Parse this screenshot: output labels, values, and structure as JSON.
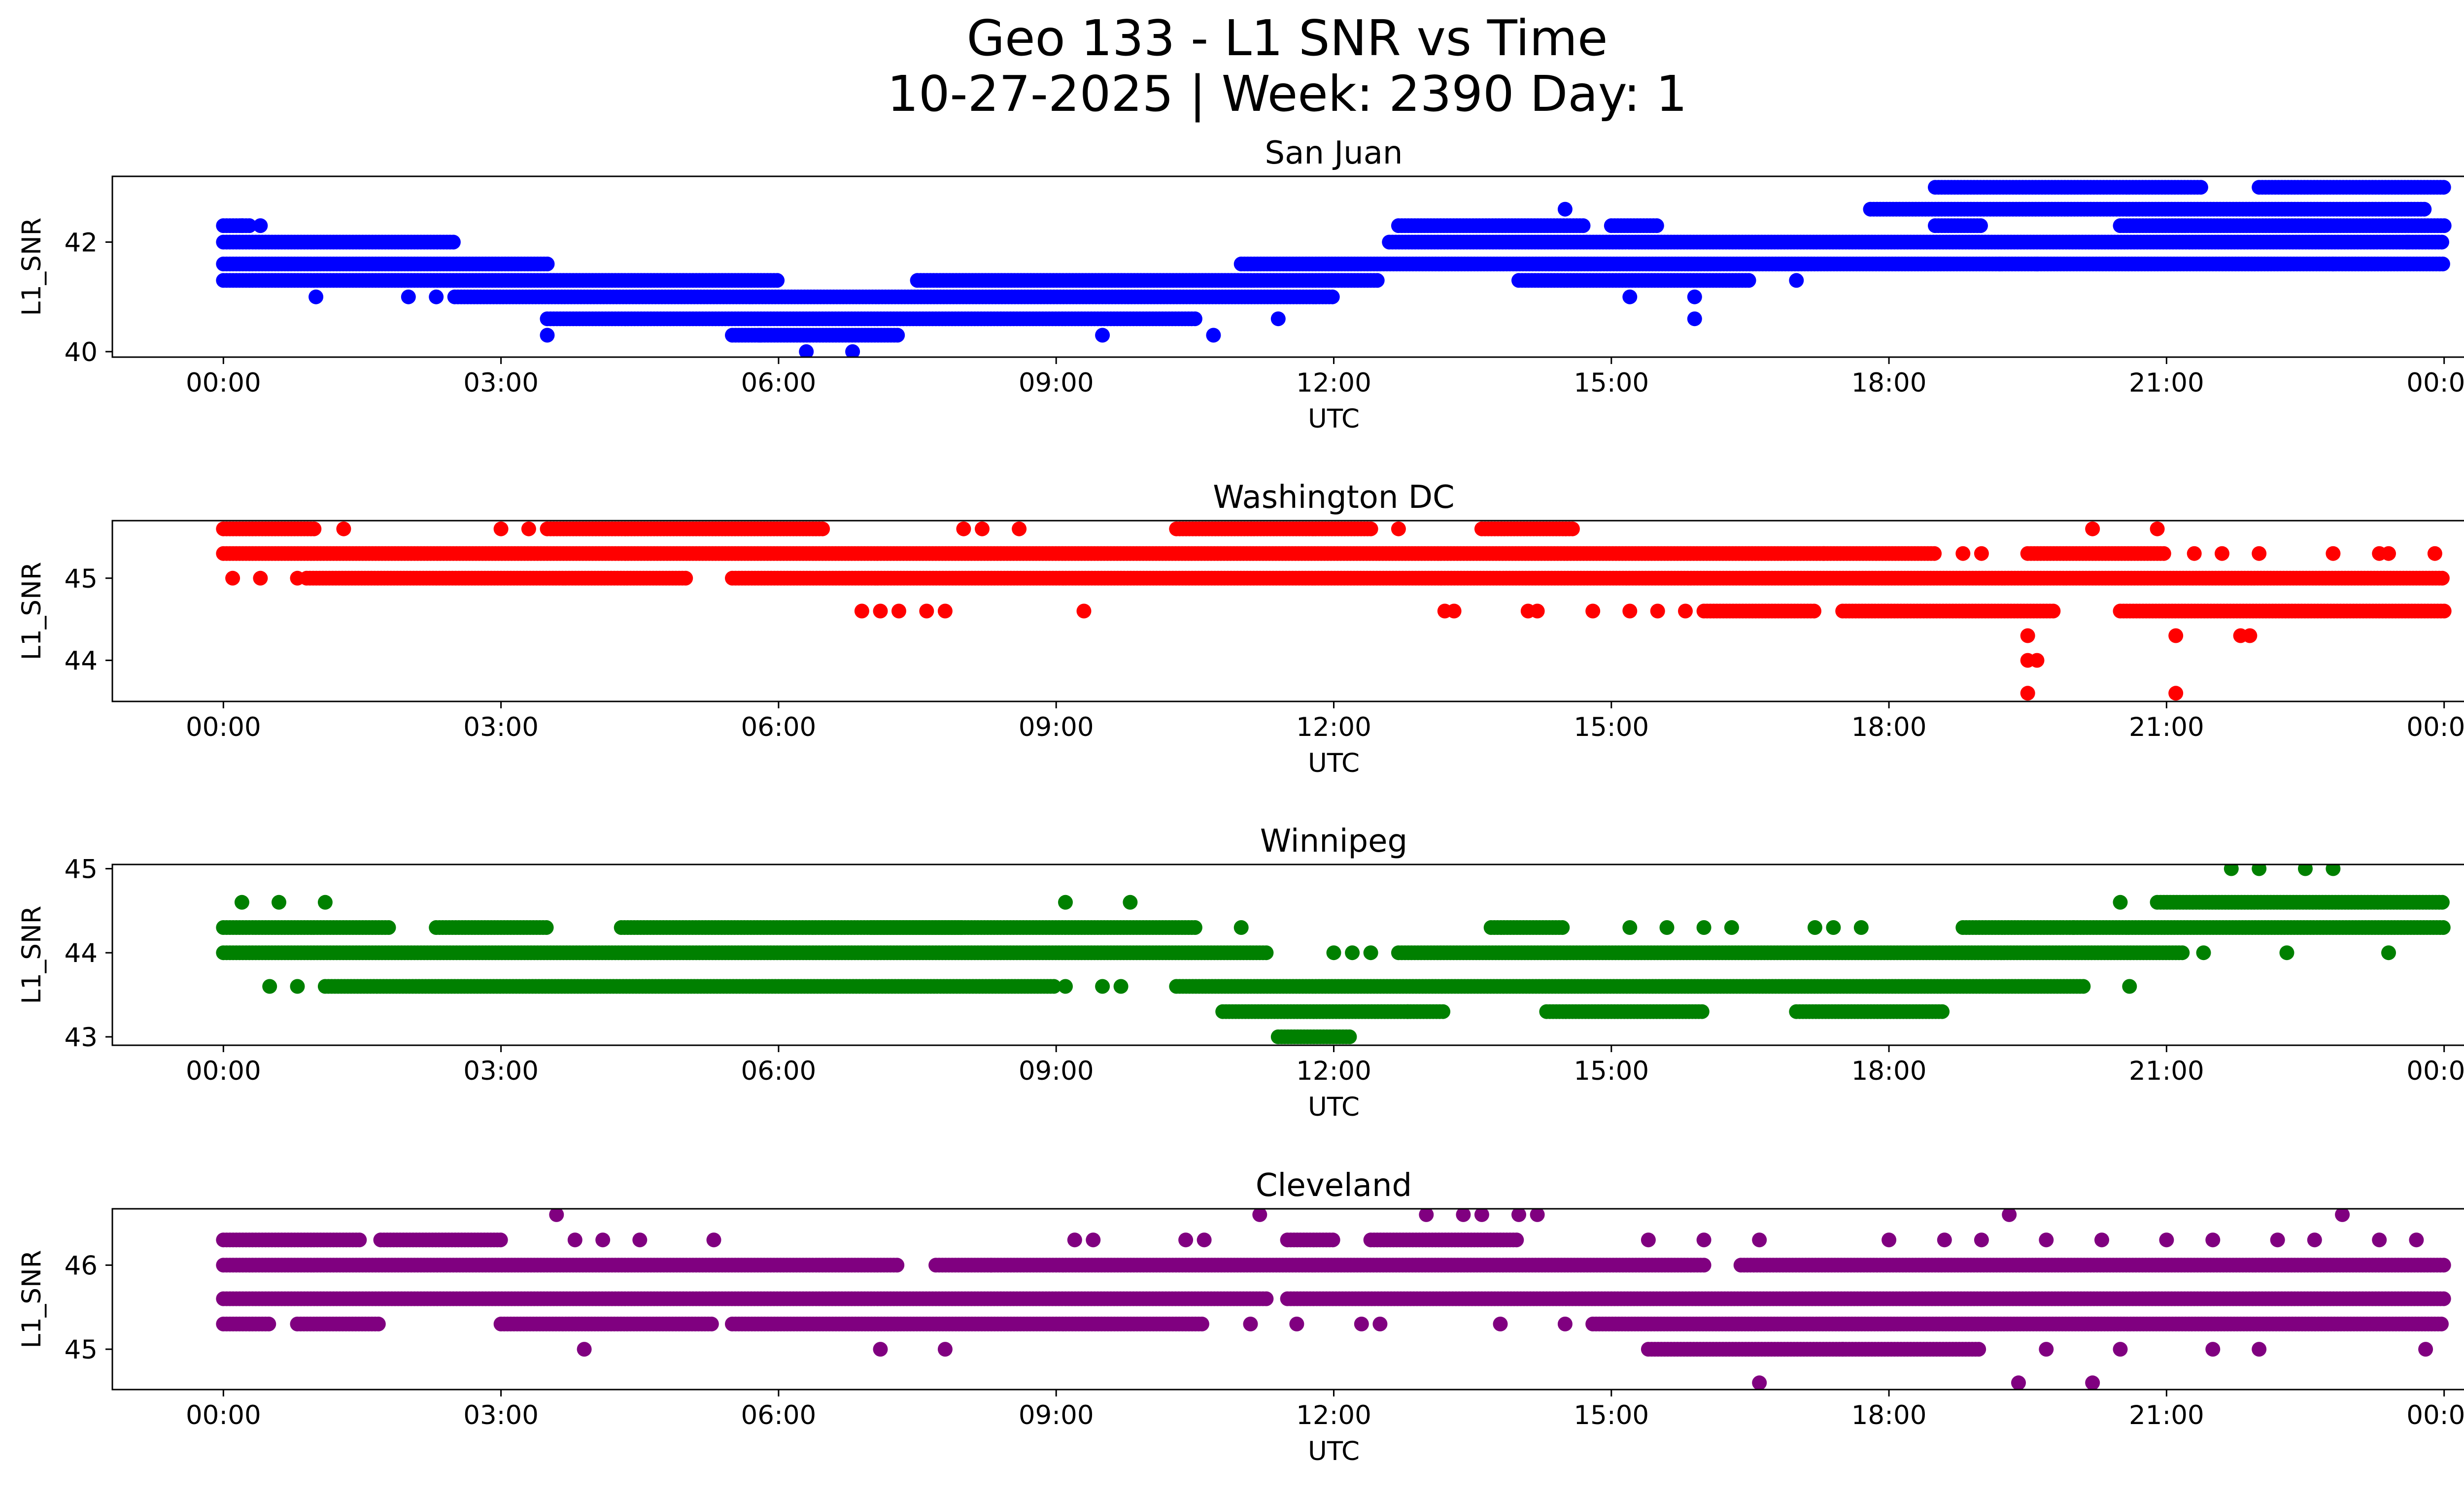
{
  "chart_data": {
    "type": "scatter",
    "title_line1": "Geo 133 - L1 SNR vs Time",
    "title_line2": "10-27-2025 | Week: 2390 Day: 1",
    "x_ticks": [
      "00:00",
      "03:00",
      "06:00",
      "09:00",
      "12:00",
      "15:00",
      "18:00",
      "21:00",
      "00:00"
    ],
    "x_tick_hours": [
      0,
      3,
      6,
      9,
      12,
      15,
      18,
      21,
      24
    ],
    "xlim": [
      -1.2,
      25.2
    ],
    "panels": [
      {
        "title": "San Juan",
        "xlabel": "UTC",
        "ylabel": "L1_SNR",
        "color": "#0000ff",
        "ylim": [
          39.9,
          43.2
        ],
        "y_ticks": [
          40,
          42
        ],
        "y_tick_labels": [
          "40",
          "42"
        ],
        "bands": [
          {
            "y": 42.3,
            "segs": [
              [
                0,
                0.3
              ],
              [
                12.7,
                14.7
              ],
              [
                15.0,
                15.5
              ],
              [
                18.5,
                19.0
              ],
              [
                20.5,
                24.0
              ]
            ]
          },
          {
            "y": 42.0,
            "segs": [
              [
                0,
                2.5
              ],
              [
                12.6,
                24.0
              ]
            ]
          },
          {
            "y": 41.6,
            "segs": [
              [
                0,
                3.5
              ],
              [
                11.0,
                24.0
              ]
            ]
          },
          {
            "y": 41.3,
            "segs": [
              [
                0,
                6.0
              ],
              [
                7.5,
                12.5
              ],
              [
                14.0,
                16.5
              ]
            ]
          },
          {
            "y": 41.0,
            "segs": [
              [
                2.5,
                12.0
              ]
            ]
          },
          {
            "y": 40.6,
            "segs": [
              [
                3.5,
                10.5
              ]
            ]
          },
          {
            "y": 40.3,
            "segs": [
              [
                5.5,
                7.3
              ]
            ]
          },
          {
            "y": 42.6,
            "segs": [
              [
                17.8,
                23.8
              ]
            ]
          },
          {
            "y": 43.0,
            "segs": [
              [
                18.5,
                21.4
              ],
              [
                22.0,
                24.0
              ]
            ]
          }
        ],
        "points": [
          [
            0.2,
            42.3
          ],
          [
            0.4,
            42.3
          ],
          [
            1.0,
            41.0
          ],
          [
            2.0,
            41.0
          ],
          [
            2.3,
            41.0
          ],
          [
            3.5,
            40.3
          ],
          [
            5.8,
            40.3
          ],
          [
            6.3,
            40.0
          ],
          [
            6.8,
            40.0
          ],
          [
            9.5,
            40.3
          ],
          [
            10.7,
            40.3
          ],
          [
            11.4,
            40.6
          ],
          [
            15.2,
            41.0
          ],
          [
            15.9,
            41.0
          ],
          [
            15.9,
            40.6
          ],
          [
            17.0,
            41.3
          ],
          [
            22.8,
            41.6
          ],
          [
            23.6,
            42.0
          ],
          [
            14.5,
            42.6
          ],
          [
            19.2,
            41.6
          ],
          [
            19.6,
            41.6
          ]
        ]
      },
      {
        "title": "Washington DC",
        "xlabel": "UTC",
        "ylabel": "L1_SNR",
        "color": "#ff0000",
        "ylim": [
          43.5,
          45.7
        ],
        "y_ticks": [
          44,
          45
        ],
        "y_tick_labels": [
          "44",
          "45"
        ],
        "bands": [
          {
            "y": 45.6,
            "segs": [
              [
                0,
                1.0
              ],
              [
                3.5,
                6.5
              ],
              [
                10.3,
                12.4
              ],
              [
                13.6,
                14.6
              ]
            ]
          },
          {
            "y": 45.3,
            "segs": [
              [
                0,
                17.3
              ],
              [
                17.3,
                18.5
              ],
              [
                19.5,
                21.0
              ]
            ]
          },
          {
            "y": 45.0,
            "segs": [
              [
                0.9,
                5.0
              ],
              [
                5.5,
                24.0
              ]
            ]
          },
          {
            "y": 44.6,
            "segs": [
              [
                16.0,
                17.2
              ],
              [
                17.5,
                19.8
              ],
              [
                20.5,
                24.0
              ]
            ]
          }
        ],
        "points": [
          [
            0.1,
            45.0
          ],
          [
            0.4,
            45.0
          ],
          [
            0.8,
            45.0
          ],
          [
            1.3,
            45.6
          ],
          [
            3.0,
            45.6
          ],
          [
            3.3,
            45.6
          ],
          [
            8.0,
            45.6
          ],
          [
            8.2,
            45.6
          ],
          [
            8.6,
            45.6
          ],
          [
            12.7,
            45.6
          ],
          [
            6.9,
            44.6
          ],
          [
            7.1,
            44.6
          ],
          [
            7.3,
            44.6
          ],
          [
            7.6,
            44.6
          ],
          [
            7.8,
            44.6
          ],
          [
            9.3,
            44.6
          ],
          [
            13.2,
            44.6
          ],
          [
            13.3,
            44.6
          ],
          [
            14.1,
            44.6
          ],
          [
            14.2,
            44.6
          ],
          [
            14.8,
            44.6
          ],
          [
            15.2,
            44.6
          ],
          [
            15.5,
            44.6
          ],
          [
            15.8,
            44.6
          ],
          [
            19.5,
            44.3
          ],
          [
            19.5,
            44.0
          ],
          [
            19.6,
            44.0
          ],
          [
            19.5,
            43.6
          ],
          [
            20.2,
            45.6
          ],
          [
            20.9,
            45.6
          ],
          [
            21.1,
            44.3
          ],
          [
            21.1,
            43.6
          ],
          [
            21.8,
            44.3
          ],
          [
            21.9,
            44.3
          ],
          [
            22.8,
            45.3
          ],
          [
            23.3,
            45.3
          ],
          [
            23.4,
            45.3
          ],
          [
            23.9,
            45.3
          ],
          [
            19.0,
            45.3
          ],
          [
            18.8,
            45.3
          ],
          [
            21.3,
            45.3
          ],
          [
            21.6,
            45.3
          ],
          [
            22.0,
            45.3
          ]
        ]
      },
      {
        "title": "Winnipeg",
        "xlabel": "UTC",
        "ylabel": "L1_SNR",
        "color": "#008000",
        "ylim": [
          42.9,
          45.05
        ],
        "y_ticks": [
          43,
          44,
          45
        ],
        "y_tick_labels": [
          "43",
          "44",
          "45"
        ],
        "bands": [
          {
            "y": 44.3,
            "segs": [
              [
                0,
                1.8
              ],
              [
                2.3,
                3.5
              ],
              [
                4.3,
                8.0
              ],
              [
                7.0,
                10.5
              ],
              [
                13.7,
                14.5
              ],
              [
                18.8,
                20.0
              ],
              [
                20.0,
                24.0
              ]
            ]
          },
          {
            "y": 44.0,
            "segs": [
              [
                0,
                11.3
              ],
              [
                12.7,
                21.2
              ]
            ]
          },
          {
            "y": 43.6,
            "segs": [
              [
                1.1,
                9.0
              ],
              [
                10.3,
                20.1
              ]
            ]
          },
          {
            "y": 43.3,
            "segs": [
              [
                10.8,
                13.2
              ],
              [
                14.3,
                16.0
              ],
              [
                17.0,
                18.6
              ]
            ]
          },
          {
            "y": 43.0,
            "segs": [
              [
                11.4,
                12.2
              ]
            ]
          },
          {
            "y": 44.6,
            "segs": [
              [
                20.9,
                24.0
              ]
            ]
          }
        ],
        "points": [
          [
            0.2,
            44.6
          ],
          [
            0.6,
            44.6
          ],
          [
            1.1,
            44.6
          ],
          [
            0.5,
            43.6
          ],
          [
            0.8,
            43.6
          ],
          [
            9.1,
            44.6
          ],
          [
            9.8,
            44.6
          ],
          [
            9.1,
            43.6
          ],
          [
            9.5,
            43.6
          ],
          [
            9.7,
            43.6
          ],
          [
            12.0,
            44.0
          ],
          [
            12.2,
            44.0
          ],
          [
            12.4,
            44.0
          ],
          [
            15.2,
            44.3
          ],
          [
            15.6,
            44.3
          ],
          [
            16.0,
            44.3
          ],
          [
            16.3,
            44.3
          ],
          [
            17.2,
            44.3
          ],
          [
            17.4,
            44.3
          ],
          [
            17.7,
            44.3
          ],
          [
            20.6,
            43.6
          ],
          [
            20.5,
            44.6
          ],
          [
            21.4,
            44.0
          ],
          [
            21.7,
            45.0
          ],
          [
            22.0,
            45.0
          ],
          [
            22.5,
            45.0
          ],
          [
            22.8,
            45.0
          ],
          [
            22.3,
            44.0
          ],
          [
            23.4,
            44.0
          ],
          [
            11.0,
            44.3
          ],
          [
            12.8,
            43.3
          ]
        ]
      },
      {
        "title": "Cleveland",
        "xlabel": "UTC",
        "ylabel": "L1_SNR",
        "color": "#800080",
        "ylim": [
          44.52,
          46.67
        ],
        "y_ticks": [
          45,
          46
        ],
        "y_tick_labels": [
          "45",
          "46"
        ],
        "bands": [
          {
            "y": 46.3,
            "segs": [
              [
                0,
                1.5
              ],
              [
                1.7,
                3.0
              ],
              [
                11.5,
                12.0
              ],
              [
                12.4,
                14.0
              ]
            ]
          },
          {
            "y": 46.0,
            "segs": [
              [
                0,
                7.3
              ],
              [
                7.7,
                8.3
              ],
              [
                8.3,
                16.0
              ],
              [
                16.4,
                24.0
              ]
            ]
          },
          {
            "y": 45.6,
            "segs": [
              [
                0,
                11.3
              ],
              [
                11.5,
                24.0
              ]
            ]
          },
          {
            "y": 45.3,
            "segs": [
              [
                0,
                0.5
              ],
              [
                0.8,
                1.7
              ],
              [
                3.0,
                5.3
              ],
              [
                5.5,
                10.6
              ],
              [
                14.8,
                24.0
              ]
            ]
          },
          {
            "y": 45.0,
            "segs": [
              [
                15.4,
                17.5
              ],
              [
                17.5,
                19.0
              ]
            ]
          }
        ],
        "points": [
          [
            3.6,
            46.6
          ],
          [
            3.9,
            45.0
          ],
          [
            7.1,
            45.0
          ],
          [
            7.8,
            45.0
          ],
          [
            11.2,
            46.6
          ],
          [
            11.1,
            45.3
          ],
          [
            11.6,
            45.3
          ],
          [
            12.3,
            45.3
          ],
          [
            12.5,
            45.3
          ],
          [
            13.0,
            46.6
          ],
          [
            13.4,
            46.6
          ],
          [
            13.6,
            46.6
          ],
          [
            14.0,
            46.6
          ],
          [
            14.2,
            46.6
          ],
          [
            13.8,
            45.3
          ],
          [
            14.5,
            45.3
          ],
          [
            16.6,
            44.6
          ],
          [
            19.4,
            44.6
          ],
          [
            20.2,
            44.6
          ],
          [
            19.3,
            46.6
          ],
          [
            22.9,
            46.6
          ],
          [
            23.8,
            45.0
          ],
          [
            9.2,
            46.3
          ],
          [
            9.4,
            46.3
          ],
          [
            10.4,
            46.3
          ],
          [
            10.6,
            46.3
          ],
          [
            3.8,
            46.3
          ],
          [
            4.1,
            46.3
          ],
          [
            4.5,
            46.3
          ],
          [
            5.3,
            46.3
          ],
          [
            15.4,
            46.3
          ],
          [
            16.0,
            46.3
          ],
          [
            16.6,
            46.3
          ],
          [
            18.0,
            46.3
          ],
          [
            18.6,
            46.3
          ],
          [
            19.0,
            46.3
          ],
          [
            19.7,
            46.3
          ],
          [
            20.3,
            46.3
          ],
          [
            21.0,
            46.3
          ],
          [
            21.5,
            46.3
          ],
          [
            22.2,
            46.3
          ],
          [
            22.6,
            46.3
          ],
          [
            23.3,
            46.3
          ],
          [
            23.7,
            46.3
          ],
          [
            19.7,
            45.0
          ],
          [
            20.5,
            45.0
          ],
          [
            21.5,
            45.0
          ],
          [
            22.0,
            45.0
          ]
        ]
      }
    ]
  }
}
